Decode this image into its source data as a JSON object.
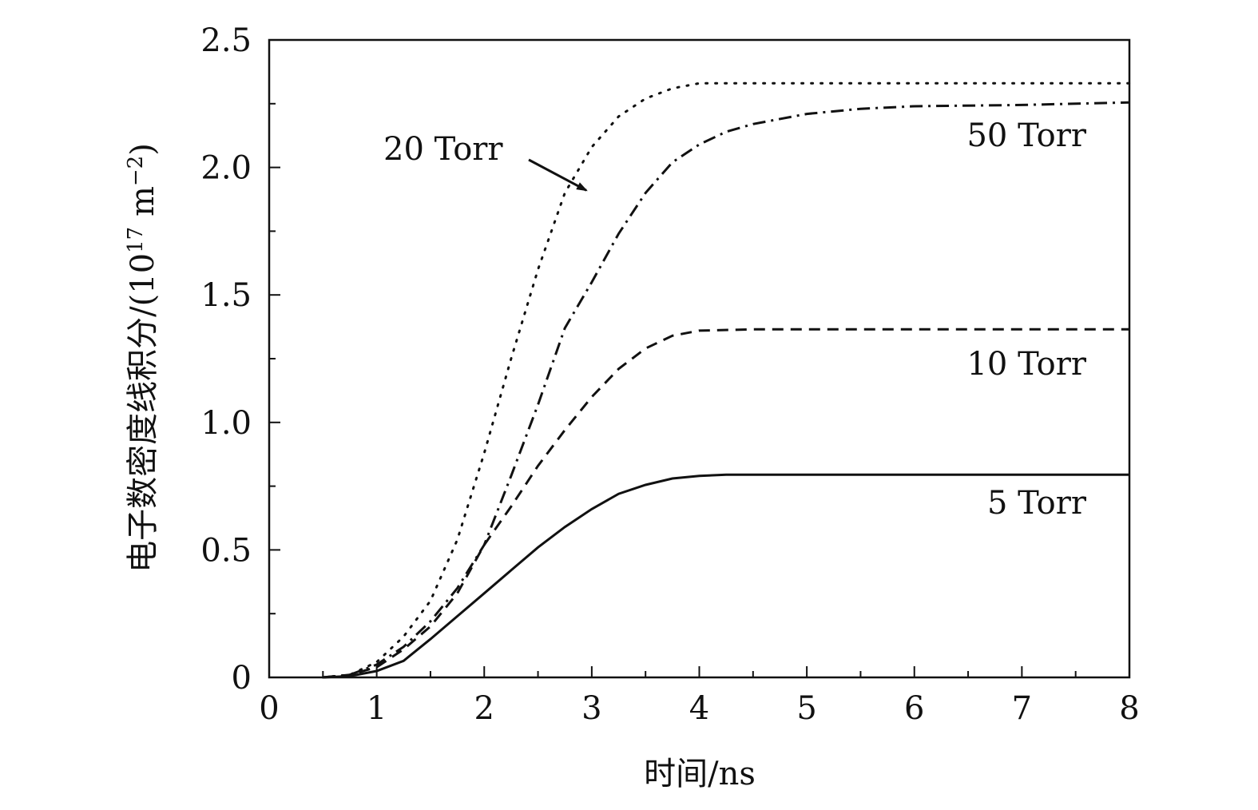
{
  "chart_data": {
    "type": "line",
    "title": "",
    "xlabel": "时间/ns",
    "ylabel": {
      "main": "电子数密度线积分/(10",
      "exp": "17",
      "unit": " m",
      "unit_exp": "−2",
      "close": ")"
    },
    "xlim": [
      0,
      8
    ],
    "ylim": [
      0,
      2.5
    ],
    "x_ticks": [
      {
        "value": 0,
        "label": "0"
      },
      {
        "value": 1,
        "label": "1"
      },
      {
        "value": 2,
        "label": "2"
      },
      {
        "value": 3,
        "label": "3"
      },
      {
        "value": 4,
        "label": "4"
      },
      {
        "value": 5,
        "label": "5"
      },
      {
        "value": 6,
        "label": "6"
      },
      {
        "value": 7,
        "label": "7"
      },
      {
        "value": 8,
        "label": "8"
      }
    ],
    "y_ticks": [
      {
        "value": 0,
        "label": "0"
      },
      {
        "value": 0.5,
        "label": "0.5"
      },
      {
        "value": 1.0,
        "label": "1.0"
      },
      {
        "value": 1.5,
        "label": "1.5"
      },
      {
        "value": 2.0,
        "label": "2.0"
      },
      {
        "value": 2.5,
        "label": "2.5"
      }
    ],
    "series": [
      {
        "name": "5 Torr",
        "style": "solid",
        "x": [
          0.5,
          0.75,
          1.0,
          1.25,
          1.5,
          1.75,
          2.0,
          2.25,
          2.5,
          2.75,
          3.0,
          3.25,
          3.5,
          3.75,
          4.0,
          4.25,
          4.5,
          5.0,
          6.0,
          7.0,
          8.0
        ],
        "y": [
          0.0,
          0.005,
          0.025,
          0.065,
          0.15,
          0.24,
          0.33,
          0.42,
          0.51,
          0.59,
          0.66,
          0.72,
          0.755,
          0.78,
          0.79,
          0.795,
          0.795,
          0.795,
          0.795,
          0.795,
          0.795
        ]
      },
      {
        "name": "10 Torr",
        "style": "dashed",
        "x": [
          0.5,
          0.75,
          1.0,
          1.25,
          1.5,
          1.75,
          2.0,
          2.25,
          2.5,
          2.75,
          3.0,
          3.25,
          3.5,
          3.75,
          4.0,
          4.5,
          5.0,
          6.0,
          7.0,
          8.0
        ],
        "y": [
          0.0,
          0.01,
          0.04,
          0.11,
          0.2,
          0.33,
          0.52,
          0.67,
          0.83,
          0.97,
          1.1,
          1.21,
          1.29,
          1.34,
          1.36,
          1.365,
          1.365,
          1.365,
          1.365,
          1.365
        ]
      },
      {
        "name": "20 Torr",
        "style": "dotted",
        "x": [
          0.5,
          0.75,
          1.0,
          1.25,
          1.5,
          1.75,
          2.0,
          2.25,
          2.5,
          2.75,
          3.0,
          3.25,
          3.5,
          3.75,
          4.0,
          4.5,
          5.0,
          6.0,
          7.0,
          8.0
        ],
        "y": [
          0.0,
          0.01,
          0.06,
          0.16,
          0.3,
          0.54,
          0.88,
          1.25,
          1.6,
          1.9,
          2.08,
          2.2,
          2.27,
          2.31,
          2.33,
          2.33,
          2.33,
          2.33,
          2.33,
          2.33
        ]
      },
      {
        "name": "50 Torr",
        "style": "dashdot",
        "x": [
          0.5,
          0.75,
          1.0,
          1.25,
          1.5,
          1.75,
          2.0,
          2.25,
          2.5,
          2.75,
          3.0,
          3.25,
          3.5,
          3.75,
          4.0,
          4.25,
          4.5,
          5.0,
          5.5,
          6.0,
          7.0,
          8.0
        ],
        "y": [
          0.0,
          0.01,
          0.05,
          0.12,
          0.22,
          0.35,
          0.52,
          0.79,
          1.07,
          1.37,
          1.55,
          1.74,
          1.9,
          2.02,
          2.09,
          2.14,
          2.17,
          2.21,
          2.23,
          2.24,
          2.245,
          2.255
        ]
      }
    ],
    "annotations": [
      {
        "text": "20 Torr",
        "arrow": true,
        "arrow_to": [
          2.95,
          1.91
        ]
      },
      {
        "text": "50 Torr"
      },
      {
        "text": "10 Torr"
      },
      {
        "text": "5 Torr"
      }
    ]
  }
}
